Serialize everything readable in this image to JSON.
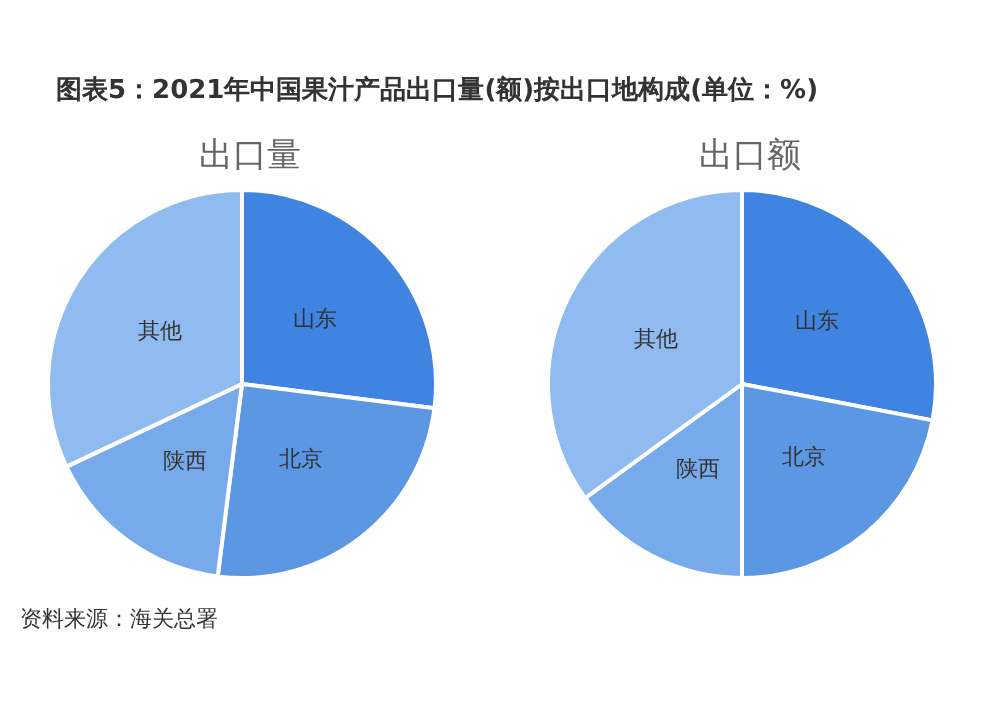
{
  "chart_data": [
    {
      "type": "pie",
      "title": "图表5：2021年中国果汁产品出口量(额)按出口地构成(单位：%)",
      "subtitle": "出口量",
      "categories": [
        "山东",
        "北京",
        "陕西",
        "其他"
      ],
      "values": [
        27,
        25,
        16,
        32
      ],
      "colors": [
        "#3f84e0",
        "#5b97e3",
        "#77aaea",
        "#8fbbf0"
      ],
      "legend": false,
      "annotations": [
        "资料来源：海关总署"
      ]
    },
    {
      "type": "pie",
      "subtitle": "出口额",
      "categories": [
        "山东",
        "北京",
        "陕西",
        "其他"
      ],
      "values": [
        28,
        22,
        15,
        35
      ],
      "colors": [
        "#3f84e0",
        "#5b97e3",
        "#77aaea",
        "#8fbbf0"
      ],
      "legend": false
    }
  ]
}
